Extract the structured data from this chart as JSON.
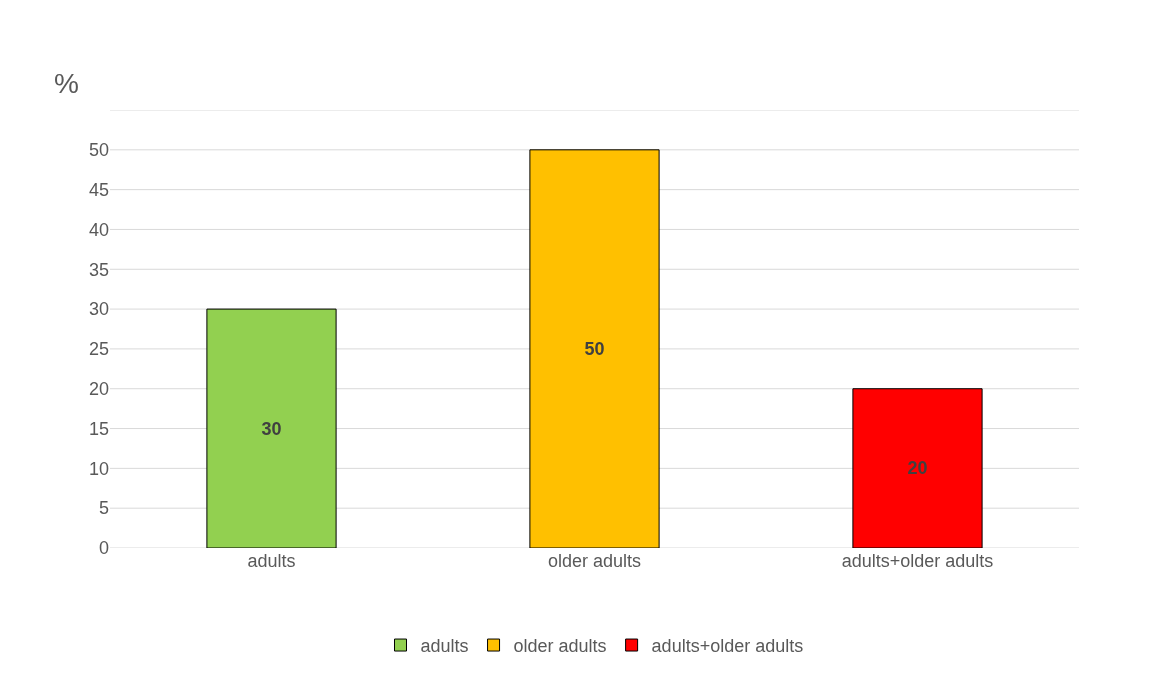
{
  "chart_data": {
    "type": "bar",
    "ylabel": "%",
    "categories": [
      "adults",
      "older adults",
      "adults+older adults"
    ],
    "series": [
      {
        "name": "adults",
        "color": "#92d050",
        "values": [
          30,
          null,
          null
        ]
      },
      {
        "name": "older adults",
        "color": "#ffc000",
        "values": [
          null,
          50,
          null
        ]
      },
      {
        "name": "adults+older adults",
        "color": "#ff0000",
        "values": [
          null,
          null,
          20
        ]
      }
    ],
    "ylim": [
      0,
      55
    ],
    "yticks": [
      0,
      5,
      10,
      15,
      20,
      25,
      30,
      35,
      40,
      45,
      50,
      {
        "value": 55,
        "label": null
      }
    ],
    "grid": "y",
    "legend": "bottom",
    "data_labels": true
  }
}
